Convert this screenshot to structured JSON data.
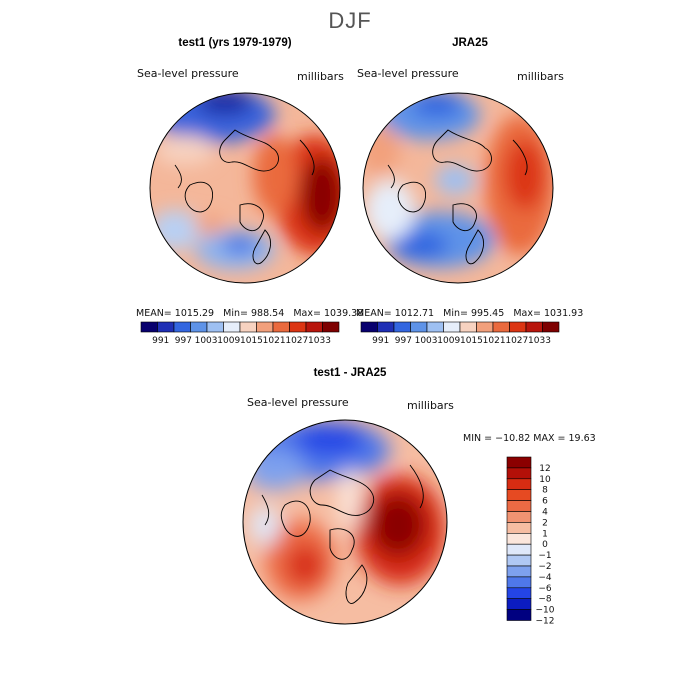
{
  "season": "DJF",
  "colors": {
    "scale_11": [
      "#08006e",
      "#1f2fb5",
      "#3366e0",
      "#5e93e8",
      "#9ec0f2",
      "#e6eefa",
      "#f7d2c0",
      "#f2a07c",
      "#ea6a3e",
      "#dc3513",
      "#b8150c",
      "#7e0000"
    ],
    "scale_diff": [
      "#000080",
      "#0b1cc0",
      "#2445e6",
      "#4f78ea",
      "#7ea1ee",
      "#b0c8f4",
      "#dfe8fa",
      "#fbe6dc",
      "#f6bda2",
      "#f19372",
      "#ec6a44",
      "#e64a22",
      "#d72c12",
      "#b31008",
      "#8b0000"
    ],
    "land_outline": "#000000"
  },
  "panels": [
    {
      "id": "test1",
      "title": "test1 (yrs 1979-1979)",
      "variable": "Sea-level pressure",
      "units": "millibars",
      "stats": {
        "mean_label": "MEAN=",
        "mean": "1015.29",
        "min_label": "Min=",
        "min": "988.54",
        "max_label": "Max=",
        "max": "1039.38"
      }
    },
    {
      "id": "jra25",
      "title": "JRA25",
      "variable": "Sea-level pressure",
      "units": "millibars",
      "stats": {
        "mean_label": "MEAN=",
        "mean": "1012.71",
        "min_label": "Min=",
        "min": "995.45",
        "max_label": "Max=",
        "max": "1031.93"
      }
    },
    {
      "id": "diff",
      "title": "test1 - JRA25",
      "variable": "Sea-level pressure",
      "units": "millibars",
      "stats_line": "MIN = −10.82  MAX =   19.63"
    }
  ],
  "chart_data": [
    {
      "type": "heatmap",
      "projection": "polar stereographic (Northern Hemisphere)",
      "title": "test1 (yrs 1979-1979)",
      "variable": "Sea-level pressure",
      "units": "millibars",
      "contour_levels": [
        "991",
        "997",
        "1003",
        "1009",
        "1015",
        "1021",
        "1027",
        "1033"
      ],
      "mean": 1015.29,
      "min": 988.54,
      "max": 1039.38
    },
    {
      "type": "heatmap",
      "projection": "polar stereographic (Northern Hemisphere)",
      "title": "JRA25",
      "variable": "Sea-level pressure",
      "units": "millibars",
      "contour_levels": [
        "991",
        "997",
        "1003",
        "1009",
        "1015",
        "1021",
        "1027",
        "1033"
      ],
      "mean": 1012.71,
      "min": 995.45,
      "max": 1031.93
    },
    {
      "type": "heatmap",
      "projection": "polar stereographic (Northern Hemisphere)",
      "title": "test1 - JRA25",
      "variable": "Sea-level pressure",
      "units": "millibars",
      "contour_levels": [
        "12",
        "10",
        "8",
        "6",
        "4",
        "2",
        "1",
        "0",
        "−1",
        "−2",
        "−4",
        "−6",
        "−8",
        "−10",
        "−12"
      ],
      "min": -10.82,
      "max": 19.63
    }
  ]
}
